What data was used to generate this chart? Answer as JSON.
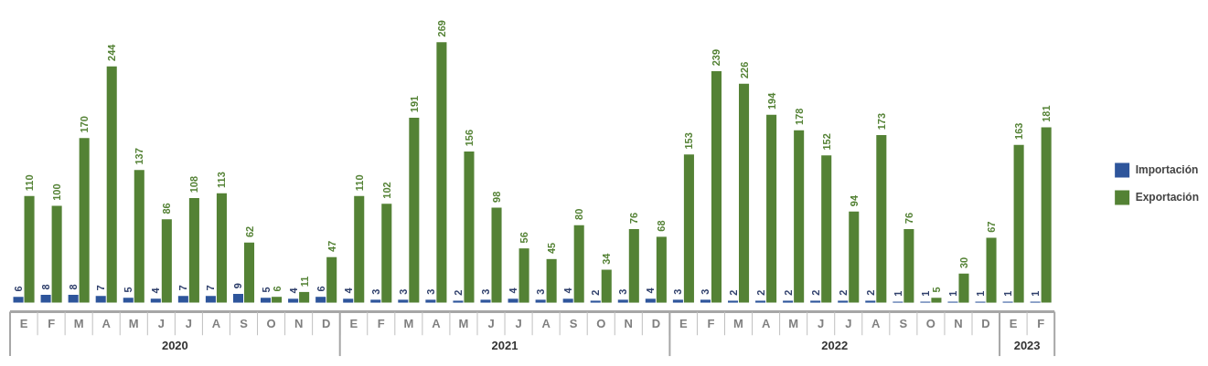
{
  "chart_data": {
    "type": "bar",
    "categories": [
      "E",
      "F",
      "M",
      "A",
      "M",
      "J",
      "J",
      "A",
      "S",
      "O",
      "N",
      "D",
      "E",
      "F",
      "M",
      "A",
      "M",
      "J",
      "J",
      "A",
      "S",
      "O",
      "N",
      "D",
      "E",
      "F",
      "M",
      "A",
      "M",
      "J",
      "J",
      "A",
      "S",
      "O",
      "N",
      "D",
      "E",
      "F"
    ],
    "series": [
      {
        "name": "Importación",
        "color": "#2e559b",
        "values": [
          6,
          8,
          8,
          7,
          5,
          4,
          7,
          7,
          9,
          5,
          4,
          6,
          4,
          3,
          3,
          3,
          2,
          3,
          4,
          3,
          4,
          2,
          3,
          4,
          3,
          3,
          2,
          2,
          2,
          2,
          2,
          2,
          1,
          1,
          1,
          1,
          1,
          1
        ]
      },
      {
        "name": "Exportación",
        "color": "#548235",
        "values": [
          110,
          100,
          170,
          244,
          137,
          86,
          108,
          113,
          62,
          6,
          11,
          47,
          110,
          102,
          191,
          269,
          156,
          98,
          56,
          45,
          80,
          34,
          76,
          68,
          153,
          239,
          226,
          194,
          178,
          152,
          94,
          173,
          76,
          5,
          30,
          67,
          163,
          181
        ]
      }
    ],
    "data_labels": true,
    "legend": "right",
    "grid": false,
    "annotations": [
      "2020",
      "2021",
      "2022",
      "2023"
    ]
  }
}
